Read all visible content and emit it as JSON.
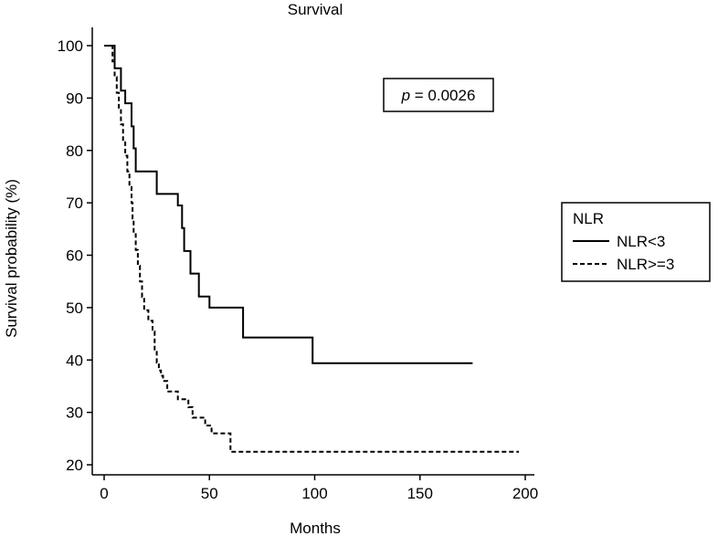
{
  "chart_data": {
    "type": "line",
    "title": "Survival",
    "xlabel": "Months",
    "ylabel": "Survival probability (%)",
    "xlim": [
      0,
      200
    ],
    "ylim": [
      20,
      100
    ],
    "xticks": [
      "0",
      "50",
      "100",
      "150",
      "200"
    ],
    "yticks": [
      "20",
      "30",
      "40",
      "50",
      "60",
      "70",
      "80",
      "90",
      "100"
    ],
    "grid": false,
    "annotation": {
      "p_label": "p",
      "p_value": "= 0.0026"
    },
    "legend": {
      "title": "NLR",
      "position": "right"
    },
    "series": [
      {
        "name": "NLR<3",
        "style": "solid",
        "points": [
          [
            0,
            100
          ],
          [
            5,
            100
          ],
          [
            5,
            95.7
          ],
          [
            8,
            95.7
          ],
          [
            8,
            91.4
          ],
          [
            10,
            91.4
          ],
          [
            10,
            89
          ],
          [
            13,
            89
          ],
          [
            13,
            84.6
          ],
          [
            14,
            84.6
          ],
          [
            14,
            80.4
          ],
          [
            15,
            80.4
          ],
          [
            15,
            76
          ],
          [
            25,
            76
          ],
          [
            25,
            71.7
          ],
          [
            35,
            71.7
          ],
          [
            35,
            69.5
          ],
          [
            37,
            69.5
          ],
          [
            37,
            65.2
          ],
          [
            38,
            65.2
          ],
          [
            38,
            60.8
          ],
          [
            41,
            60.8
          ],
          [
            41,
            56.5
          ],
          [
            45,
            56.5
          ],
          [
            45,
            52.1
          ],
          [
            50,
            52.1
          ],
          [
            50,
            50
          ],
          [
            66,
            50
          ],
          [
            66,
            44.3
          ],
          [
            99,
            44.3
          ],
          [
            99,
            39.4
          ],
          [
            175,
            39.4
          ]
        ]
      },
      {
        "name": "NLR>=3",
        "style": "dashed",
        "points": [
          [
            0,
            100
          ],
          [
            4,
            100
          ],
          [
            4,
            97
          ],
          [
            5,
            97
          ],
          [
            5,
            94
          ],
          [
            6,
            94
          ],
          [
            6,
            91
          ],
          [
            7,
            91
          ],
          [
            7,
            88
          ],
          [
            8,
            88
          ],
          [
            8,
            85
          ],
          [
            9,
            85
          ],
          [
            9,
            82
          ],
          [
            10,
            82
          ],
          [
            10,
            79
          ],
          [
            11,
            79
          ],
          [
            11,
            76
          ],
          [
            12,
            76
          ],
          [
            12,
            73
          ],
          [
            13,
            73
          ],
          [
            13,
            70
          ],
          [
            13.5,
            70
          ],
          [
            13.5,
            67
          ],
          [
            14,
            67
          ],
          [
            14,
            64
          ],
          [
            15,
            64
          ],
          [
            15,
            61
          ],
          [
            16,
            61
          ],
          [
            16,
            58
          ],
          [
            17,
            58
          ],
          [
            17,
            55
          ],
          [
            18,
            55
          ],
          [
            18,
            52
          ],
          [
            19,
            52
          ],
          [
            19,
            49.5
          ],
          [
            21,
            49.5
          ],
          [
            21,
            47.5
          ],
          [
            23,
            47.5
          ],
          [
            23,
            45.5
          ],
          [
            24,
            45.5
          ],
          [
            24,
            42
          ],
          [
            25,
            42
          ],
          [
            25,
            39.5
          ],
          [
            26,
            39.5
          ],
          [
            26,
            38
          ],
          [
            27,
            38
          ],
          [
            27,
            37
          ],
          [
            28,
            37
          ],
          [
            28,
            36
          ],
          [
            30,
            36
          ],
          [
            30,
            34
          ],
          [
            35,
            34
          ],
          [
            35,
            32.5
          ],
          [
            40,
            32.5
          ],
          [
            40,
            31
          ],
          [
            42,
            31
          ],
          [
            42,
            29
          ],
          [
            48,
            29
          ],
          [
            48,
            27.5
          ],
          [
            51,
            27.5
          ],
          [
            51,
            26
          ],
          [
            60,
            26
          ],
          [
            60,
            22.5
          ],
          [
            197,
            22.5
          ]
        ]
      }
    ]
  }
}
